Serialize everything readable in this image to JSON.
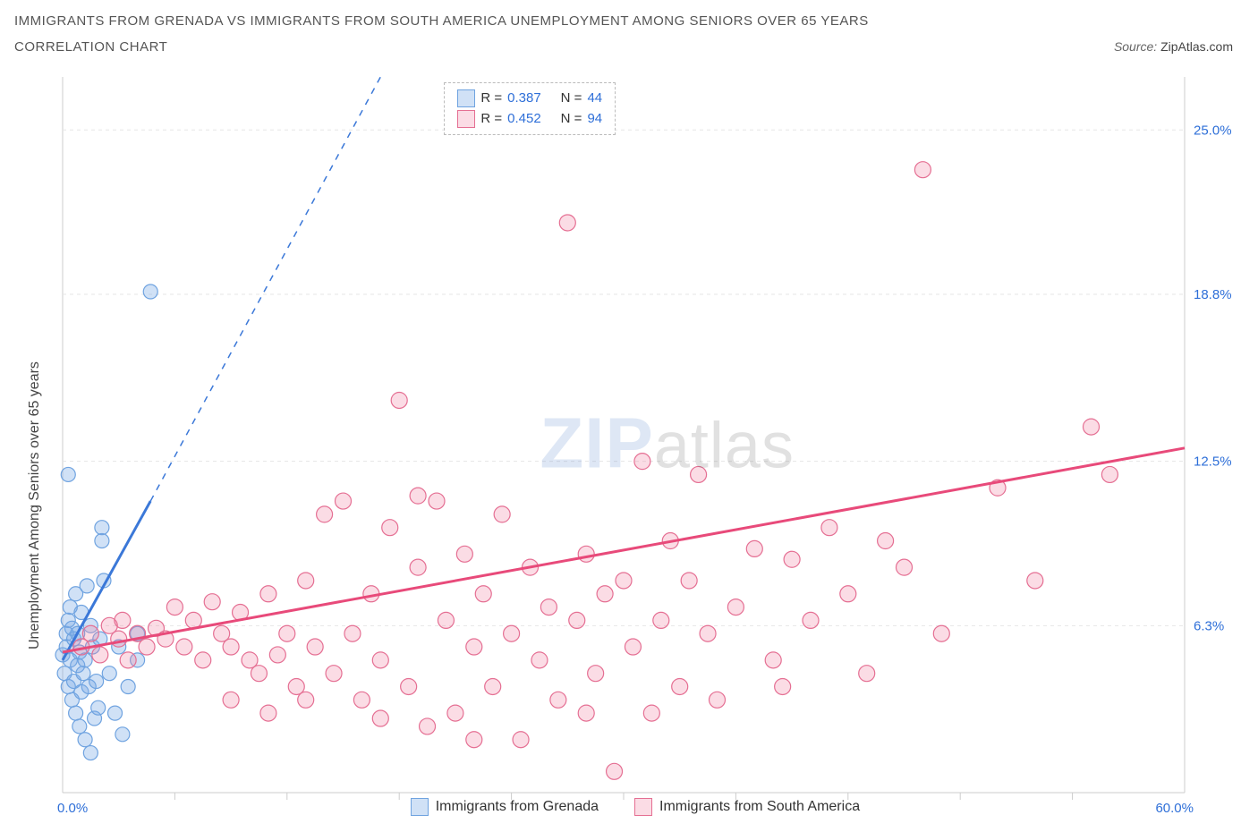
{
  "title_line1": "IMMIGRANTS FROM GRENADA VS IMMIGRANTS FROM SOUTH AMERICA UNEMPLOYMENT AMONG SENIORS OVER 65 YEARS",
  "title_line2": "CORRELATION CHART",
  "source_label": "Source: ",
  "source_value": "ZipAtlas.com",
  "watermark_zip": "ZIP",
  "watermark_atlas": "atlas",
  "chart": {
    "type": "scatter",
    "background_color": "#ffffff",
    "plot_border_color": "#cccccc",
    "grid_color": "#e6e6e6",
    "xlim": [
      0,
      60
    ],
    "ylim": [
      0,
      27
    ],
    "x_ticks": [
      0,
      60
    ],
    "x_tick_labels": [
      "0.0%",
      "60.0%"
    ],
    "x_minor_ticks": [
      6,
      12,
      18,
      24,
      30,
      36,
      42,
      48,
      54
    ],
    "y_ticks": [
      6.3,
      12.5,
      18.8,
      25.0
    ],
    "y_tick_labels": [
      "6.3%",
      "12.5%",
      "18.8%",
      "25.0%"
    ],
    "y_grid_lines": [
      6.3,
      12.5,
      18.8,
      25.0
    ],
    "y_axis_label": "Unemployment Among Seniors over 65 years",
    "legend": {
      "position_top": 6,
      "position_left_pct": 34,
      "series": [
        {
          "label": "Immigrants from Grenada",
          "r_label": "R =",
          "r": "0.387",
          "n_label": "N =",
          "n": "44"
        },
        {
          "label": "Immigrants from South America",
          "r_label": "R =",
          "r": "0.452",
          "n_label": "N =",
          "n": "94"
        }
      ]
    },
    "series": [
      {
        "name": "grenada",
        "label": "Immigrants from Grenada",
        "marker_fill": "rgba(120,170,230,0.35)",
        "marker_stroke": "#6fa3e0",
        "marker_radius": 8,
        "trend_color": "#3b78d8",
        "trend_width": 3,
        "trend_solid": {
          "x1": 0,
          "y1": 5.0,
          "x2": 4.7,
          "y2": 11.0
        },
        "trend_dashed": {
          "x1": 4.7,
          "y1": 11.0,
          "x2": 17.0,
          "y2": 27.0
        },
        "points": [
          [
            0.0,
            5.2
          ],
          [
            0.1,
            4.5
          ],
          [
            0.2,
            6.0
          ],
          [
            0.2,
            5.5
          ],
          [
            0.3,
            4.0
          ],
          [
            0.3,
            6.5
          ],
          [
            0.4,
            5.0
          ],
          [
            0.4,
            7.0
          ],
          [
            0.5,
            3.5
          ],
          [
            0.5,
            6.2
          ],
          [
            0.6,
            4.2
          ],
          [
            0.6,
            5.8
          ],
          [
            0.7,
            3.0
          ],
          [
            0.7,
            7.5
          ],
          [
            0.8,
            4.8
          ],
          [
            0.8,
            6.0
          ],
          [
            0.9,
            2.5
          ],
          [
            0.9,
            5.3
          ],
          [
            1.0,
            3.8
          ],
          [
            1.0,
            6.8
          ],
          [
            1.1,
            4.5
          ],
          [
            1.2,
            5.0
          ],
          [
            1.2,
            2.0
          ],
          [
            1.3,
            7.8
          ],
          [
            1.4,
            4.0
          ],
          [
            1.5,
            6.3
          ],
          [
            1.5,
            1.5
          ],
          [
            1.6,
            5.5
          ],
          [
            1.7,
            2.8
          ],
          [
            1.8,
            4.2
          ],
          [
            1.9,
            3.2
          ],
          [
            2.0,
            5.8
          ],
          [
            2.1,
            9.5
          ],
          [
            2.1,
            10.0
          ],
          [
            2.2,
            8.0
          ],
          [
            2.5,
            4.5
          ],
          [
            2.8,
            3.0
          ],
          [
            3.0,
            5.5
          ],
          [
            3.2,
            2.2
          ],
          [
            3.5,
            4.0
          ],
          [
            4.0,
            6.0
          ],
          [
            4.0,
            5.0
          ],
          [
            4.7,
            18.9
          ],
          [
            0.3,
            12.0
          ]
        ]
      },
      {
        "name": "south_america",
        "label": "Immigrants from South America",
        "marker_fill": "rgba(240,130,160,0.28)",
        "marker_stroke": "#e56f93",
        "marker_radius": 9,
        "trend_color": "#e84a7a",
        "trend_width": 3,
        "trend_solid": {
          "x1": 0,
          "y1": 5.3,
          "x2": 60,
          "y2": 13.0
        },
        "points": [
          [
            1.0,
            5.5
          ],
          [
            1.5,
            6.0
          ],
          [
            2.0,
            5.2
          ],
          [
            2.5,
            6.3
          ],
          [
            3.0,
            5.8
          ],
          [
            3.2,
            6.5
          ],
          [
            3.5,
            5.0
          ],
          [
            4.0,
            6.0
          ],
          [
            4.5,
            5.5
          ],
          [
            5.0,
            6.2
          ],
          [
            5.5,
            5.8
          ],
          [
            6.0,
            7.0
          ],
          [
            6.5,
            5.5
          ],
          [
            7.0,
            6.5
          ],
          [
            7.5,
            5.0
          ],
          [
            8.0,
            7.2
          ],
          [
            8.5,
            6.0
          ],
          [
            9.0,
            5.5
          ],
          [
            9.5,
            6.8
          ],
          [
            10.0,
            5.0
          ],
          [
            10.5,
            4.5
          ],
          [
            11.0,
            7.5
          ],
          [
            11.5,
            5.2
          ],
          [
            12.0,
            6.0
          ],
          [
            12.5,
            4.0
          ],
          [
            13.0,
            8.0
          ],
          [
            13.5,
            5.5
          ],
          [
            14.0,
            10.5
          ],
          [
            14.5,
            4.5
          ],
          [
            15.0,
            11.0
          ],
          [
            15.5,
            6.0
          ],
          [
            16.0,
            3.5
          ],
          [
            16.5,
            7.5
          ],
          [
            17.0,
            5.0
          ],
          [
            17.5,
            10.0
          ],
          [
            18.0,
            14.8
          ],
          [
            18.5,
            4.0
          ],
          [
            19.0,
            8.5
          ],
          [
            19.5,
            2.5
          ],
          [
            20.0,
            11.0
          ],
          [
            20.5,
            6.5
          ],
          [
            21.0,
            3.0
          ],
          [
            21.5,
            9.0
          ],
          [
            22.0,
            5.5
          ],
          [
            22.5,
            7.5
          ],
          [
            23.0,
            4.0
          ],
          [
            23.5,
            10.5
          ],
          [
            24.0,
            6.0
          ],
          [
            24.5,
            2.0
          ],
          [
            25.0,
            8.5
          ],
          [
            25.5,
            5.0
          ],
          [
            26.0,
            7.0
          ],
          [
            26.5,
            3.5
          ],
          [
            27.0,
            21.5
          ],
          [
            27.5,
            6.5
          ],
          [
            28.0,
            9.0
          ],
          [
            28.5,
            4.5
          ],
          [
            29.0,
            7.5
          ],
          [
            29.5,
            0.8
          ],
          [
            30.0,
            8.0
          ],
          [
            30.5,
            5.5
          ],
          [
            31.0,
            12.5
          ],
          [
            31.5,
            3.0
          ],
          [
            32.0,
            6.5
          ],
          [
            32.5,
            9.5
          ],
          [
            33.0,
            4.0
          ],
          [
            33.5,
            8.0
          ],
          [
            34.0,
            12.0
          ],
          [
            34.5,
            6.0
          ],
          [
            35.0,
            3.5
          ],
          [
            36.0,
            7.0
          ],
          [
            37.0,
            9.2
          ],
          [
            38.0,
            5.0
          ],
          [
            38.5,
            4.0
          ],
          [
            39.0,
            8.8
          ],
          [
            40.0,
            6.5
          ],
          [
            41.0,
            10.0
          ],
          [
            42.0,
            7.5
          ],
          [
            43.0,
            4.5
          ],
          [
            44.0,
            9.5
          ],
          [
            45.0,
            8.5
          ],
          [
            46.0,
            23.5
          ],
          [
            47.0,
            6.0
          ],
          [
            50.0,
            11.5
          ],
          [
            52.0,
            8.0
          ],
          [
            28.0,
            3.0
          ],
          [
            22.0,
            2.0
          ],
          [
            19.0,
            11.2
          ],
          [
            17.0,
            2.8
          ],
          [
            55.0,
            13.8
          ],
          [
            56.0,
            12.0
          ],
          [
            13.0,
            3.5
          ],
          [
            11.0,
            3.0
          ],
          [
            9.0,
            3.5
          ]
        ]
      }
    ]
  }
}
